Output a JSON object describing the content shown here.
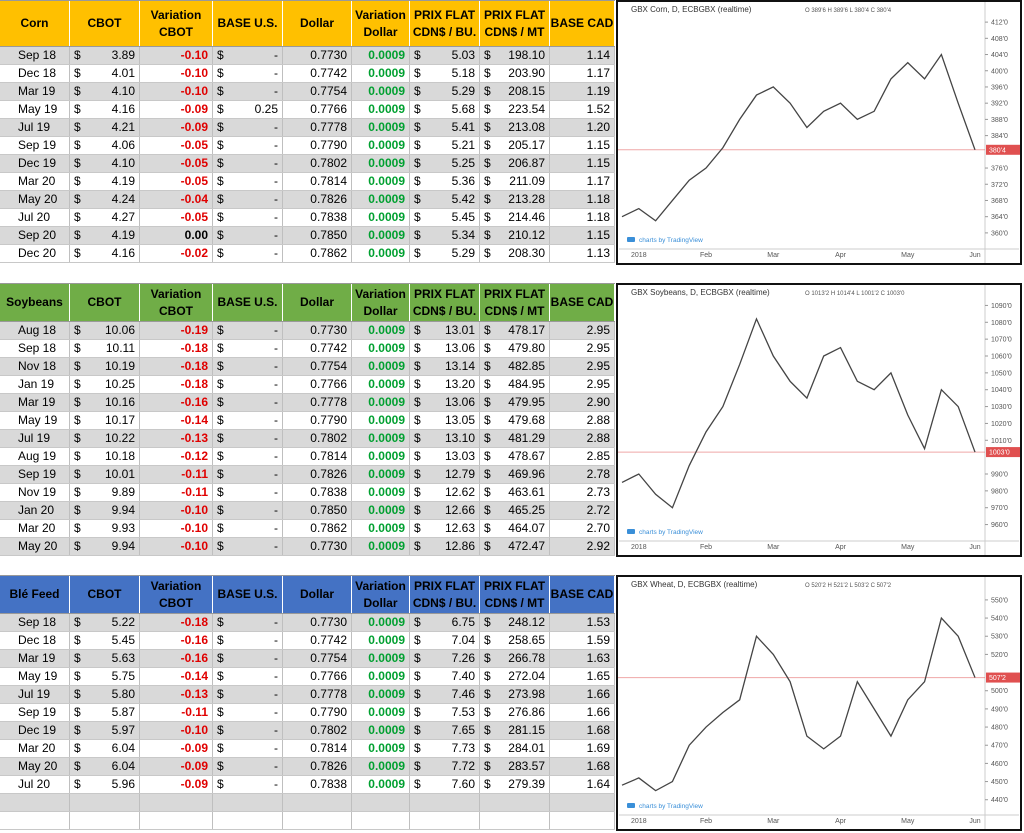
{
  "tables": [
    {
      "header": [
        [
          "Corn"
        ],
        [
          "CBOT"
        ],
        [
          "Variation",
          "CBOT"
        ],
        [
          "BASE U.S."
        ],
        [
          "Dollar"
        ],
        [
          "Variation",
          "Dollar"
        ],
        [
          "PRIX FLAT",
          "CDN$ / BU."
        ],
        [
          "PRIX FLAT",
          "CDN$ / MT"
        ],
        [
          "BASE CAD"
        ]
      ],
      "rows": [
        [
          "Sep 18",
          "$",
          "3.89",
          "-0.10",
          "$",
          "-",
          "0.7730",
          "0.0009",
          "$",
          "5.03",
          "$",
          "198.10",
          "1.14"
        ],
        [
          "Dec 18",
          "$",
          "4.01",
          "-0.10",
          "$",
          "-",
          "0.7742",
          "0.0009",
          "$",
          "5.18",
          "$",
          "203.90",
          "1.17"
        ],
        [
          "Mar 19",
          "$",
          "4.10",
          "-0.10",
          "$",
          "-",
          "0.7754",
          "0.0009",
          "$",
          "5.29",
          "$",
          "208.15",
          "1.19"
        ],
        [
          "May 19",
          "$",
          "4.16",
          "-0.09",
          "$",
          "0.25",
          "0.7766",
          "0.0009",
          "$",
          "5.68",
          "$",
          "223.54",
          "1.52"
        ],
        [
          "Jul 19",
          "$",
          "4.21",
          "-0.09",
          "$",
          "-",
          "0.7778",
          "0.0009",
          "$",
          "5.41",
          "$",
          "213.08",
          "1.20"
        ],
        [
          "Sep 19",
          "$",
          "4.06",
          "-0.05",
          "$",
          "-",
          "0.7790",
          "0.0009",
          "$",
          "5.21",
          "$",
          "205.17",
          "1.15"
        ],
        [
          "Dec 19",
          "$",
          "4.10",
          "-0.05",
          "$",
          "-",
          "0.7802",
          "0.0009",
          "$",
          "5.25",
          "$",
          "206.87",
          "1.15"
        ],
        [
          "Mar 20",
          "$",
          "4.19",
          "-0.05",
          "$",
          "-",
          "0.7814",
          "0.0009",
          "$",
          "5.36",
          "$",
          "211.09",
          "1.17"
        ],
        [
          "May 20",
          "$",
          "4.24",
          "-0.04",
          "$",
          "-",
          "0.7826",
          "0.0009",
          "$",
          "5.42",
          "$",
          "213.28",
          "1.18"
        ],
        [
          "Jul 20",
          "$",
          "4.27",
          "-0.05",
          "$",
          "-",
          "0.7838",
          "0.0009",
          "$",
          "5.45",
          "$",
          "214.46",
          "1.18"
        ],
        [
          "Sep 20",
          "$",
          "4.19",
          "0.00",
          "$",
          "-",
          "0.7850",
          "0.0009",
          "$",
          "5.34",
          "$",
          "210.12",
          "1.15"
        ],
        [
          "Dec 20",
          "$",
          "4.16",
          "-0.02",
          "$",
          "-",
          "0.7862",
          "0.0009",
          "$",
          "5.29",
          "$",
          "208.30",
          "1.13"
        ]
      ]
    },
    {
      "header": [
        [
          "Soybeans"
        ],
        [
          "CBOT"
        ],
        [
          "Variation",
          "CBOT"
        ],
        [
          "BASE U.S."
        ],
        [
          "Dollar"
        ],
        [
          "Variation",
          "Dollar"
        ],
        [
          "PRIX FLAT",
          "CDN$ / BU."
        ],
        [
          "PRIX FLAT",
          "CDN$ / MT"
        ],
        [
          "BASE CAD"
        ]
      ],
      "rows": [
        [
          "Aug 18",
          "$",
          "10.06",
          "-0.19",
          "$",
          "-",
          "0.7730",
          "0.0009",
          "$",
          "13.01",
          "$",
          "478.17",
          "2.95"
        ],
        [
          "Sep 18",
          "$",
          "10.11",
          "-0.18",
          "$",
          "-",
          "0.7742",
          "0.0009",
          "$",
          "13.06",
          "$",
          "479.80",
          "2.95"
        ],
        [
          "Nov 18",
          "$",
          "10.19",
          "-0.18",
          "$",
          "-",
          "0.7754",
          "0.0009",
          "$",
          "13.14",
          "$",
          "482.85",
          "2.95"
        ],
        [
          "Jan 19",
          "$",
          "10.25",
          "-0.18",
          "$",
          "-",
          "0.7766",
          "0.0009",
          "$",
          "13.20",
          "$",
          "484.95",
          "2.95"
        ],
        [
          "Mar 19",
          "$",
          "10.16",
          "-0.16",
          "$",
          "-",
          "0.7778",
          "0.0009",
          "$",
          "13.06",
          "$",
          "479.95",
          "2.90"
        ],
        [
          "May 19",
          "$",
          "10.17",
          "-0.14",
          "$",
          "-",
          "0.7790",
          "0.0009",
          "$",
          "13.05",
          "$",
          "479.68",
          "2.88"
        ],
        [
          "Jul 19",
          "$",
          "10.22",
          "-0.13",
          "$",
          "-",
          "0.7802",
          "0.0009",
          "$",
          "13.10",
          "$",
          "481.29",
          "2.88"
        ],
        [
          "Aug 19",
          "$",
          "10.18",
          "-0.12",
          "$",
          "-",
          "0.7814",
          "0.0009",
          "$",
          "13.03",
          "$",
          "478.67",
          "2.85"
        ],
        [
          "Sep 19",
          "$",
          "10.01",
          "-0.11",
          "$",
          "-",
          "0.7826",
          "0.0009",
          "$",
          "12.79",
          "$",
          "469.96",
          "2.78"
        ],
        [
          "Nov 19",
          "$",
          "9.89",
          "-0.11",
          "$",
          "-",
          "0.7838",
          "0.0009",
          "$",
          "12.62",
          "$",
          "463.61",
          "2.73"
        ],
        [
          "Jan 20",
          "$",
          "9.94",
          "-0.10",
          "$",
          "-",
          "0.7850",
          "0.0009",
          "$",
          "12.66",
          "$",
          "465.25",
          "2.72"
        ],
        [
          "Mar 20",
          "$",
          "9.93",
          "-0.10",
          "$",
          "-",
          "0.7862",
          "0.0009",
          "$",
          "12.63",
          "$",
          "464.07",
          "2.70"
        ],
        [
          "May 20",
          "$",
          "9.94",
          "-0.10",
          "$",
          "-",
          "0.7730",
          "0.0009",
          "$",
          "12.86",
          "$",
          "472.47",
          "2.92"
        ]
      ]
    },
    {
      "header": [
        [
          "Blé Feed"
        ],
        [
          "CBOT"
        ],
        [
          "Variation",
          "CBOT"
        ],
        [
          "BASE U.S."
        ],
        [
          "Dollar"
        ],
        [
          "Variation",
          "Dollar"
        ],
        [
          "PRIX FLAT",
          "CDN$ / BU."
        ],
        [
          "PRIX FLAT",
          "CDN$ / MT"
        ],
        [
          "BASE CAD"
        ]
      ],
      "rows": [
        [
          "Sep 18",
          "$",
          "5.22",
          "-0.18",
          "$",
          "-",
          "0.7730",
          "0.0009",
          "$",
          "6.75",
          "$",
          "248.12",
          "1.53"
        ],
        [
          "Dec 18",
          "$",
          "5.45",
          "-0.16",
          "$",
          "-",
          "0.7742",
          "0.0009",
          "$",
          "7.04",
          "$",
          "258.65",
          "1.59"
        ],
        [
          "Mar 19",
          "$",
          "5.63",
          "-0.16",
          "$",
          "-",
          "0.7754",
          "0.0009",
          "$",
          "7.26",
          "$",
          "266.78",
          "1.63"
        ],
        [
          "May 19",
          "$",
          "5.75",
          "-0.14",
          "$",
          "-",
          "0.7766",
          "0.0009",
          "$",
          "7.40",
          "$",
          "272.04",
          "1.65"
        ],
        [
          "Jul 19",
          "$",
          "5.80",
          "-0.13",
          "$",
          "-",
          "0.7778",
          "0.0009",
          "$",
          "7.46",
          "$",
          "273.98",
          "1.66"
        ],
        [
          "Sep 19",
          "$",
          "5.87",
          "-0.11",
          "$",
          "-",
          "0.7790",
          "0.0009",
          "$",
          "7.53",
          "$",
          "276.86",
          "1.66"
        ],
        [
          "Dec 19",
          "$",
          "5.97",
          "-0.10",
          "$",
          "-",
          "0.7802",
          "0.0009",
          "$",
          "7.65",
          "$",
          "281.15",
          "1.68"
        ],
        [
          "Mar 20",
          "$",
          "6.04",
          "-0.09",
          "$",
          "-",
          "0.7814",
          "0.0009",
          "$",
          "7.73",
          "$",
          "284.01",
          "1.69"
        ],
        [
          "May 20",
          "$",
          "6.04",
          "-0.09",
          "$",
          "-",
          "0.7826",
          "0.0009",
          "$",
          "7.72",
          "$",
          "283.57",
          "1.68"
        ],
        [
          "Jul 20",
          "$",
          "5.96",
          "-0.09",
          "$",
          "-",
          "0.7838",
          "0.0009",
          "$",
          "7.60",
          "$",
          "279.39",
          "1.64"
        ]
      ]
    }
  ],
  "chart_data": [
    {
      "type": "line",
      "title": "GBX Corn, D, ECBGBX (realtime)",
      "subtitle": "O 389'6 H 389'6 L 380'4 C 380'4",
      "credit": "charts by TradingView",
      "categories": [
        null,
        "2018",
        null,
        null,
        null,
        "Feb",
        null,
        null,
        null,
        "Mar",
        null,
        null,
        null,
        "Apr",
        null,
        null,
        null,
        "May",
        null,
        null,
        null,
        "Jun"
      ],
      "series": [
        {
          "color": "#444444",
          "values": [
            364,
            366,
            363,
            368,
            373,
            376,
            381,
            388,
            394,
            396,
            392,
            386,
            390,
            392,
            388,
            390,
            398,
            402,
            398,
            404,
            392,
            380.5
          ]
        }
      ],
      "price_line": {
        "value": 380.5,
        "label": "380'4",
        "color": "#e05050"
      },
      "ylim": [
        358,
        414
      ],
      "yticks": [
        {
          "value": 412,
          "label": "412'0"
        },
        {
          "value": 408,
          "label": "408'0"
        },
        {
          "value": 404,
          "label": "404'0"
        },
        {
          "value": 400,
          "label": "400'0"
        },
        {
          "value": 396,
          "label": "396'0"
        },
        {
          "value": 392,
          "label": "392'0"
        },
        {
          "value": 388,
          "label": "388'0"
        },
        {
          "value": 384,
          "label": "384'0"
        },
        {
          "value": 376,
          "label": "376'0"
        },
        {
          "value": 372,
          "label": "372'0"
        },
        {
          "value": 368,
          "label": "368'0"
        },
        {
          "value": 364,
          "label": "364'0"
        },
        {
          "value": 360,
          "label": "360'0"
        }
      ]
    },
    {
      "type": "line",
      "title": "GBX Soybeans, D, ECBGBX (realtime)",
      "subtitle": "O 1013'2 H 1014'4 L 1001'2 C 1003'0",
      "credit": "charts by TradingView",
      "categories": [
        null,
        "2018",
        null,
        null,
        null,
        "Feb",
        null,
        null,
        null,
        "Mar",
        null,
        null,
        null,
        "Apr",
        null,
        null,
        null,
        "May",
        null,
        null,
        null,
        "Jun"
      ],
      "series": [
        {
          "color": "#444444",
          "values": [
            985,
            990,
            978,
            970,
            995,
            1015,
            1030,
            1055,
            1082,
            1060,
            1045,
            1035,
            1060,
            1065,
            1045,
            1040,
            1050,
            1025,
            1005,
            1040,
            1030,
            1003
          ]
        }
      ],
      "price_line": {
        "value": 1003,
        "label": "1003'0",
        "color": "#e05050"
      },
      "ylim": [
        955,
        1095
      ],
      "yticks": [
        {
          "value": 1090,
          "label": "1090'0"
        },
        {
          "value": 1080,
          "label": "1080'0"
        },
        {
          "value": 1070,
          "label": "1070'0"
        },
        {
          "value": 1060,
          "label": "1060'0"
        },
        {
          "value": 1050,
          "label": "1050'0"
        },
        {
          "value": 1040,
          "label": "1040'0"
        },
        {
          "value": 1030,
          "label": "1030'0"
        },
        {
          "value": 1020,
          "label": "1020'0"
        },
        {
          "value": 1010,
          "label": "1010'0"
        },
        {
          "value": 990,
          "label": "990'0"
        },
        {
          "value": 980,
          "label": "980'0"
        },
        {
          "value": 970,
          "label": "970'0"
        },
        {
          "value": 960,
          "label": "960'0"
        }
      ]
    },
    {
      "type": "line",
      "title": "GBX Wheat, D, ECBGBX (realtime)",
      "subtitle": "O 520'2 H 521'2 L 503'2 C 507'2",
      "credit": "charts by TradingView",
      "categories": [
        null,
        "2018",
        null,
        null,
        null,
        "Feb",
        null,
        null,
        null,
        "Mar",
        null,
        null,
        null,
        "Apr",
        null,
        null,
        null,
        "May",
        null,
        null,
        null,
        "Jun"
      ],
      "series": [
        {
          "color": "#444444",
          "values": [
            448,
            452,
            445,
            450,
            470,
            480,
            488,
            495,
            530,
            520,
            505,
            475,
            468,
            475,
            505,
            490,
            475,
            495,
            505,
            540,
            530,
            507.25
          ]
        }
      ],
      "price_line": {
        "value": 507.25,
        "label": "507'2",
        "color": "#e05050"
      },
      "ylim": [
        436,
        556
      ],
      "yticks": [
        {
          "value": 550,
          "label": "550'0"
        },
        {
          "value": 540,
          "label": "540'0"
        },
        {
          "value": 530,
          "label": "530'0"
        },
        {
          "value": 520,
          "label": "520'0"
        },
        {
          "value": 500,
          "label": "500'0"
        },
        {
          "value": 490,
          "label": "490'0"
        },
        {
          "value": 480,
          "label": "480'0"
        },
        {
          "value": 470,
          "label": "470'0"
        },
        {
          "value": 460,
          "label": "460'0"
        },
        {
          "value": 450,
          "label": "450'0"
        },
        {
          "value": 440,
          "label": "440'0"
        }
      ]
    }
  ]
}
